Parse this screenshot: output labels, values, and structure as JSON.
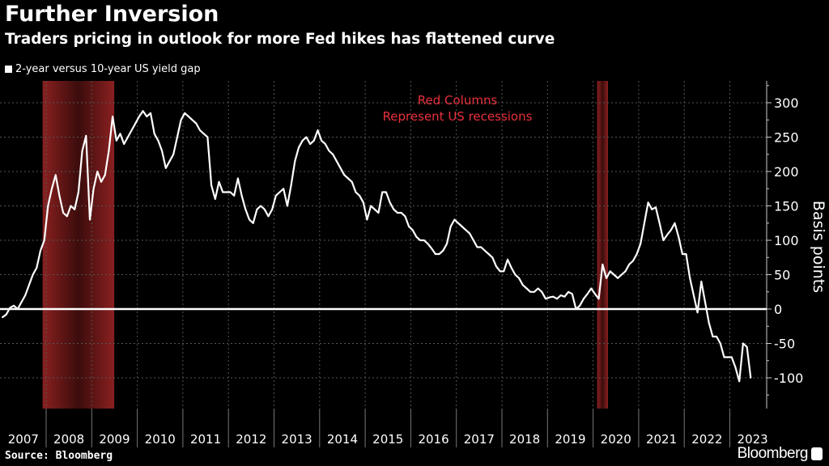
{
  "title": "Further Inversion",
  "subtitle": "Traders pricing in outlook for more Fed hikes has flattened curve",
  "legend": "2-year versus 10-year US yield gap",
  "source": "Source: Bloomberg",
  "logo": "Bloomberg",
  "colors": {
    "line": "#ffffff",
    "recession": "#7a1a1a",
    "annotation": "#e8303c",
    "grid": "#555555"
  },
  "chart_data": {
    "type": "line",
    "title": "Further Inversion",
    "ylabel": "Basis points",
    "ylim": [
      -150,
      330
    ],
    "yticks": [
      300,
      250,
      200,
      150,
      100,
      50,
      0,
      -50,
      -100
    ],
    "xticks": [
      "2007",
      "2008",
      "2009",
      "2010",
      "2011",
      "2012",
      "2013",
      "2014",
      "2015",
      "2016",
      "2017",
      "2018",
      "2019",
      "2020",
      "2021",
      "2022",
      "2023"
    ],
    "xlim": [
      "2007-01",
      "2023-10"
    ],
    "grid": true,
    "zero_line": true,
    "recessions": [
      {
        "start": "2007-12",
        "end": "2009-06"
      },
      {
        "start": "2020-02",
        "end": "2020-04"
      }
    ],
    "annotation": [
      "Red Columns",
      "Represent US recessions"
    ],
    "series": [
      {
        "name": "2-year versus 10-year US yield gap",
        "points": [
          [
            "2007-01",
            -12
          ],
          [
            "2007-02",
            -8
          ],
          [
            "2007-03",
            2
          ],
          [
            "2007-04",
            5
          ],
          [
            "2007-05",
            0
          ],
          [
            "2007-06",
            10
          ],
          [
            "2007-07",
            20
          ],
          [
            "2007-08",
            35
          ],
          [
            "2007-09",
            50
          ],
          [
            "2007-10",
            60
          ],
          [
            "2007-11",
            85
          ],
          [
            "2007-12",
            100
          ],
          [
            "2008-01",
            150
          ],
          [
            "2008-02",
            175
          ],
          [
            "2008-03",
            195
          ],
          [
            "2008-04",
            165
          ],
          [
            "2008-05",
            140
          ],
          [
            "2008-06",
            135
          ],
          [
            "2008-07",
            150
          ],
          [
            "2008-08",
            145
          ],
          [
            "2008-09",
            170
          ],
          [
            "2008-10",
            230
          ],
          [
            "2008-11",
            252
          ],
          [
            "2008-12",
            130
          ],
          [
            "2009-01",
            175
          ],
          [
            "2009-02",
            200
          ],
          [
            "2009-03",
            185
          ],
          [
            "2009-04",
            195
          ],
          [
            "2009-05",
            230
          ],
          [
            "2009-06",
            280
          ],
          [
            "2009-07",
            245
          ],
          [
            "2009-08",
            255
          ],
          [
            "2009-09",
            240
          ],
          [
            "2009-10",
            250
          ],
          [
            "2009-11",
            260
          ],
          [
            "2009-12",
            270
          ],
          [
            "2010-01",
            280
          ],
          [
            "2010-02",
            288
          ],
          [
            "2010-03",
            280
          ],
          [
            "2010-04",
            285
          ],
          [
            "2010-05",
            255
          ],
          [
            "2010-06",
            245
          ],
          [
            "2010-07",
            230
          ],
          [
            "2010-08",
            205
          ],
          [
            "2010-09",
            215
          ],
          [
            "2010-10",
            225
          ],
          [
            "2010-11",
            250
          ],
          [
            "2010-12",
            275
          ],
          [
            "2011-01",
            285
          ],
          [
            "2011-02",
            280
          ],
          [
            "2011-03",
            275
          ],
          [
            "2011-04",
            270
          ],
          [
            "2011-05",
            260
          ],
          [
            "2011-06",
            255
          ],
          [
            "2011-07",
            250
          ],
          [
            "2011-08",
            180
          ],
          [
            "2011-09",
            160
          ],
          [
            "2011-10",
            185
          ],
          [
            "2011-11",
            170
          ],
          [
            "2011-12",
            170
          ],
          [
            "2012-01",
            170
          ],
          [
            "2012-02",
            165
          ],
          [
            "2012-03",
            190
          ],
          [
            "2012-04",
            165
          ],
          [
            "2012-05",
            145
          ],
          [
            "2012-06",
            130
          ],
          [
            "2012-07",
            125
          ],
          [
            "2012-08",
            145
          ],
          [
            "2012-09",
            150
          ],
          [
            "2012-10",
            145
          ],
          [
            "2012-11",
            135
          ],
          [
            "2012-12",
            145
          ],
          [
            "2013-01",
            165
          ],
          [
            "2013-02",
            170
          ],
          [
            "2013-03",
            175
          ],
          [
            "2013-04",
            150
          ],
          [
            "2013-05",
            180
          ],
          [
            "2013-06",
            215
          ],
          [
            "2013-07",
            235
          ],
          [
            "2013-08",
            245
          ],
          [
            "2013-09",
            250
          ],
          [
            "2013-10",
            240
          ],
          [
            "2013-11",
            245
          ],
          [
            "2013-12",
            260
          ],
          [
            "2014-01",
            245
          ],
          [
            "2014-02",
            240
          ],
          [
            "2014-03",
            230
          ],
          [
            "2014-04",
            225
          ],
          [
            "2014-05",
            215
          ],
          [
            "2014-06",
            205
          ],
          [
            "2014-07",
            195
          ],
          [
            "2014-08",
            190
          ],
          [
            "2014-09",
            185
          ],
          [
            "2014-10",
            170
          ],
          [
            "2014-11",
            165
          ],
          [
            "2014-12",
            155
          ],
          [
            "2015-01",
            130
          ],
          [
            "2015-02",
            150
          ],
          [
            "2015-03",
            145
          ],
          [
            "2015-04",
            140
          ],
          [
            "2015-05",
            170
          ],
          [
            "2015-06",
            170
          ],
          [
            "2015-07",
            155
          ],
          [
            "2015-08",
            145
          ],
          [
            "2015-09",
            140
          ],
          [
            "2015-10",
            140
          ],
          [
            "2015-11",
            135
          ],
          [
            "2015-12",
            120
          ],
          [
            "2016-01",
            115
          ],
          [
            "2016-02",
            105
          ],
          [
            "2016-03",
            100
          ],
          [
            "2016-04",
            100
          ],
          [
            "2016-05",
            95
          ],
          [
            "2016-06",
            88
          ],
          [
            "2016-07",
            80
          ],
          [
            "2016-08",
            80
          ],
          [
            "2016-09",
            85
          ],
          [
            "2016-10",
            95
          ],
          [
            "2016-11",
            120
          ],
          [
            "2016-12",
            130
          ],
          [
            "2017-01",
            125
          ],
          [
            "2017-02",
            120
          ],
          [
            "2017-03",
            115
          ],
          [
            "2017-04",
            110
          ],
          [
            "2017-05",
            100
          ],
          [
            "2017-06",
            90
          ],
          [
            "2017-07",
            90
          ],
          [
            "2017-08",
            85
          ],
          [
            "2017-09",
            80
          ],
          [
            "2017-10",
            75
          ],
          [
            "2017-11",
            62
          ],
          [
            "2017-12",
            55
          ],
          [
            "2018-01",
            55
          ],
          [
            "2018-02",
            72
          ],
          [
            "2018-03",
            60
          ],
          [
            "2018-04",
            50
          ],
          [
            "2018-05",
            45
          ],
          [
            "2018-06",
            35
          ],
          [
            "2018-07",
            30
          ],
          [
            "2018-08",
            25
          ],
          [
            "2018-09",
            25
          ],
          [
            "2018-10",
            30
          ],
          [
            "2018-11",
            25
          ],
          [
            "2018-12",
            15
          ],
          [
            "2019-01",
            17
          ],
          [
            "2019-02",
            18
          ],
          [
            "2019-03",
            15
          ],
          [
            "2019-04",
            20
          ],
          [
            "2019-05",
            18
          ],
          [
            "2019-06",
            25
          ],
          [
            "2019-07",
            22
          ],
          [
            "2019-08",
            0
          ],
          [
            "2019-09",
            5
          ],
          [
            "2019-10",
            15
          ],
          [
            "2019-11",
            22
          ],
          [
            "2019-12",
            30
          ],
          [
            "2020-01",
            22
          ],
          [
            "2020-02",
            15
          ],
          [
            "2020-03",
            65
          ],
          [
            "2020-04",
            45
          ],
          [
            "2020-05",
            55
          ],
          [
            "2020-06",
            50
          ],
          [
            "2020-07",
            45
          ],
          [
            "2020-08",
            50
          ],
          [
            "2020-09",
            55
          ],
          [
            "2020-10",
            65
          ],
          [
            "2020-11",
            70
          ],
          [
            "2020-12",
            80
          ],
          [
            "2021-01",
            95
          ],
          [
            "2021-02",
            125
          ],
          [
            "2021-03",
            155
          ],
          [
            "2021-04",
            145
          ],
          [
            "2021-05",
            148
          ],
          [
            "2021-06",
            125
          ],
          [
            "2021-07",
            100
          ],
          [
            "2021-08",
            108
          ],
          [
            "2021-09",
            115
          ],
          [
            "2021-10",
            125
          ],
          [
            "2021-11",
            105
          ],
          [
            "2021-12",
            80
          ],
          [
            "2022-01",
            80
          ],
          [
            "2022-02",
            45
          ],
          [
            "2022-03",
            20
          ],
          [
            "2022-04",
            -5
          ],
          [
            "2022-05",
            40
          ],
          [
            "2022-06",
            10
          ],
          [
            "2022-07",
            -20
          ],
          [
            "2022-08",
            -40
          ],
          [
            "2022-09",
            -40
          ],
          [
            "2022-10",
            -50
          ],
          [
            "2022-11",
            -70
          ],
          [
            "2022-12",
            -70
          ],
          [
            "2023-01",
            -70
          ],
          [
            "2023-02",
            -85
          ],
          [
            "2023-03",
            -105
          ],
          [
            "2023-04",
            -50
          ],
          [
            "2023-05",
            -55
          ],
          [
            "2023-06",
            -100
          ]
        ]
      }
    ]
  }
}
